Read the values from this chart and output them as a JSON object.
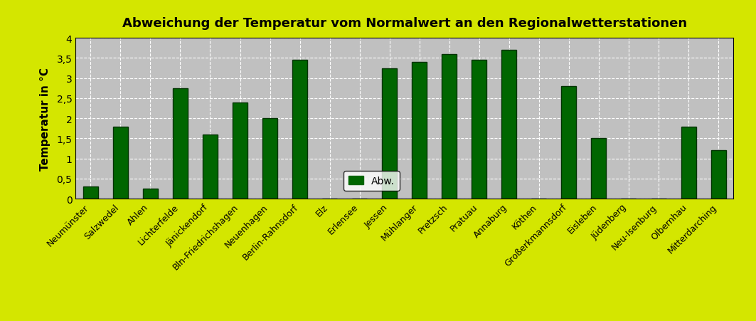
{
  "title": "Abweichung der Temperatur vom Normalwert an den Regionalwetterstationen",
  "ylabel": "Temperatur in °C",
  "categories": [
    "Neumünster",
    "Salzwedel",
    "Ahlen",
    "Lichterfelde",
    "Jänickendorf",
    "Bln-Friedrichshagen",
    "Neuenhagen",
    "Berlin-Rahnsdorf",
    "Elz",
    "Erlensee",
    "Jessen",
    "Mühlanger",
    "Pretzsch",
    "Pratuau",
    "Annaburg",
    "Köthen",
    "Großerkmannsdorf",
    "Eisleben",
    "Jüdenberg",
    "Neu-Isenburg",
    "Olbernhau",
    "Mitterdarching"
  ],
  "values": [
    0.3,
    1.8,
    0.25,
    2.75,
    1.6,
    2.4,
    2.0,
    3.45,
    0.0,
    0.0,
    3.25,
    3.4,
    3.6,
    3.45,
    3.7,
    0.0,
    2.8,
    1.5,
    0.0,
    0.0,
    1.8,
    1.2
  ],
  "bar_color": "#006600",
  "bar_edge_color": "#003300",
  "ylim": [
    0,
    4
  ],
  "yticks": [
    0,
    0.5,
    1.0,
    1.5,
    2.0,
    2.5,
    3.0,
    3.5,
    4.0
  ],
  "ytick_labels": [
    "0",
    "0,5",
    "1",
    "1,5",
    "2",
    "2,5",
    "3",
    "3,5",
    "4"
  ],
  "background_color": "#d4e600",
  "plot_bg_color": "#c0c0c0",
  "title_fontsize": 13,
  "legend_label": "Abw.",
  "grid_color": "white",
  "grid_linestyle": "--"
}
